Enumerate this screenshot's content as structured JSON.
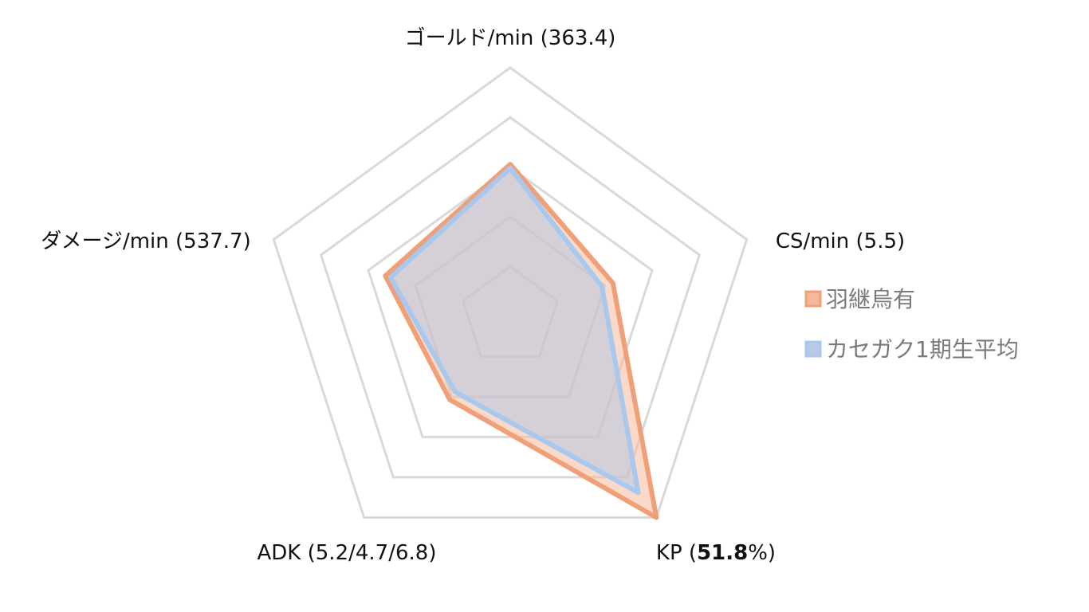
{
  "chart_data": {
    "type": "radar",
    "title": "",
    "axes": [
      {
        "name": "ゴールド/min",
        "prefix": "ゴールド/min (",
        "value_text": "363.4",
        "suffix": ")",
        "bold": false
      },
      {
        "name": "CS/min",
        "prefix": "CS/min (",
        "value_text": "5.5",
        "suffix": ")",
        "bold": false
      },
      {
        "name": "KP",
        "prefix": "KP (",
        "value_text": "51.8",
        "suffix": "%)",
        "bold": true
      },
      {
        "name": "ADK",
        "prefix": "ADK (",
        "value_text": "5.2/4.7/6.8",
        "suffix": ")",
        "bold": false
      },
      {
        "name": "ダメージ/min",
        "prefix": "ダメージ/min (",
        "value_text": "537.7",
        "suffix": ")",
        "bold": false
      }
    ],
    "scale": {
      "min": 0,
      "max": 5,
      "rings": 5
    },
    "series": [
      {
        "name": "羽継烏有",
        "values": [
          3.06,
          2.17,
          5.0,
          2.07,
          2.64
        ],
        "stroke": "#f0a078",
        "fill": "#f6b99a"
      },
      {
        "name": "カセガク1期生平均",
        "values": [
          2.98,
          1.94,
          4.38,
          1.88,
          2.53
        ],
        "stroke": "#a8c8ee",
        "fill": "#b7c9e6"
      }
    ],
    "legend": {
      "position": "right"
    },
    "grid": {
      "color": "#d9d9d9"
    }
  }
}
